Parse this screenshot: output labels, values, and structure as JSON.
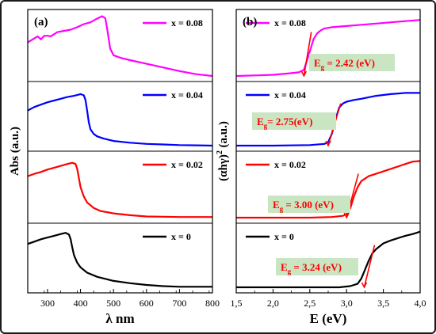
{
  "colors": {
    "x_0.08": "#ff00ff",
    "x_0.04": "#0000ff",
    "x_0.02": "#ff0000",
    "x_0": "#000000",
    "eg_box": "#c9e5c2",
    "eg_text": "#ff0000",
    "tangent": "#ff0000"
  },
  "chart_data": [
    {
      "type": "line",
      "panel_label": "(a)",
      "xlabel": "λ nm",
      "ylabel": "Abs (a.u.)",
      "xlim": [
        240,
        800
      ],
      "xticks": [
        300,
        400,
        500,
        600,
        700,
        800
      ],
      "grid": false,
      "stacked_panels": true,
      "series": [
        {
          "name": "x = 0.08",
          "color_key": "x_0.08",
          "x": [
            240,
            270,
            280,
            290,
            300,
            310,
            330,
            350,
            370,
            390,
            410,
            430,
            450,
            465,
            475,
            480,
            490,
            500,
            520,
            550,
            600,
            650,
            700,
            750,
            800
          ],
          "y": [
            0.55,
            0.65,
            0.6,
            0.66,
            0.66,
            0.65,
            0.72,
            0.74,
            0.76,
            0.8,
            0.85,
            0.88,
            0.94,
            0.98,
            0.95,
            0.8,
            0.45,
            0.34,
            0.3,
            0.26,
            0.2,
            0.14,
            0.08,
            0.03,
            0.0
          ]
        },
        {
          "name": "x = 0.04",
          "color_key": "x_0.04",
          "x": [
            240,
            260,
            280,
            300,
            320,
            340,
            360,
            380,
            400,
            410,
            415,
            420,
            425,
            430,
            440,
            450,
            470,
            500,
            550,
            600,
            650,
            700,
            750,
            800
          ],
          "y": [
            0.6,
            0.66,
            0.7,
            0.74,
            0.77,
            0.8,
            0.83,
            0.85,
            0.88,
            0.86,
            0.78,
            0.6,
            0.4,
            0.28,
            0.2,
            0.16,
            0.12,
            0.08,
            0.05,
            0.03,
            0.02,
            0.01,
            0.005,
            0.0
          ]
        },
        {
          "name": "x = 0.02",
          "color_key": "x_0.02",
          "x": [
            240,
            260,
            280,
            300,
            320,
            340,
            360,
            375,
            385,
            390,
            395,
            400,
            410,
            420,
            440,
            460,
            500,
            550,
            600,
            650,
            700,
            750,
            800
          ],
          "y": [
            0.68,
            0.72,
            0.75,
            0.79,
            0.82,
            0.85,
            0.88,
            0.9,
            0.88,
            0.8,
            0.65,
            0.5,
            0.35,
            0.25,
            0.16,
            0.11,
            0.07,
            0.04,
            0.02,
            0.015,
            0.01,
            0.01,
            0.01
          ]
        },
        {
          "name": "x = 0",
          "color_key": "x_0",
          "x": [
            240,
            260,
            280,
            300,
            320,
            340,
            355,
            365,
            370,
            375,
            380,
            390,
            400,
            420,
            450,
            500,
            550,
            600,
            650,
            700,
            750,
            800
          ],
          "y": [
            0.74,
            0.78,
            0.82,
            0.85,
            0.88,
            0.91,
            0.93,
            0.9,
            0.82,
            0.68,
            0.55,
            0.42,
            0.34,
            0.25,
            0.18,
            0.11,
            0.07,
            0.04,
            0.02,
            0.01,
            0.01,
            0.01
          ]
        }
      ]
    },
    {
      "type": "line",
      "panel_label": "(b)",
      "xlabel": "E (eV)",
      "ylabel": "(αhγ)²",
      "ylabel_unit": "(a.u.)",
      "xlim": [
        1.5,
        4.0
      ],
      "xticks": [
        1.5,
        2.0,
        2.5,
        3.0,
        3.5,
        4.0
      ],
      "xtick_labels": [
        "1,5",
        "2,0",
        "2,5",
        "3,0",
        "3,5",
        "4,0"
      ],
      "grid": false,
      "stacked_panels": true,
      "series": [
        {
          "name": "x = 0.08",
          "color_key": "x_0.08",
          "x": [
            1.5,
            1.8,
            2.0,
            2.2,
            2.35,
            2.42,
            2.5,
            2.55,
            2.6,
            2.65,
            2.7,
            2.8,
            3.0,
            3.2,
            3.4,
            3.6,
            3.8,
            4.0
          ],
          "y": [
            0.0,
            0.01,
            0.02,
            0.04,
            0.06,
            0.1,
            0.4,
            0.6,
            0.7,
            0.75,
            0.78,
            0.8,
            0.82,
            0.84,
            0.86,
            0.88,
            0.9,
            0.92
          ],
          "Eg_label": "2.42 (eV)",
          "Eg": 2.42
        },
        {
          "name": "x = 0.04",
          "color_key": "x_0.04",
          "x": [
            1.5,
            2.0,
            2.5,
            2.7,
            2.75,
            2.8,
            2.85,
            2.9,
            2.95,
            3.0,
            3.1,
            3.2,
            3.4,
            3.6,
            3.8,
            4.0
          ],
          "y": [
            0.0,
            0.0,
            0.01,
            0.03,
            0.06,
            0.2,
            0.45,
            0.65,
            0.72,
            0.75,
            0.78,
            0.8,
            0.85,
            0.88,
            0.9,
            0.9
          ],
          "Eg_label": "2.75(eV)",
          "Eg": 2.75
        },
        {
          "name": "x = 0.02",
          "color_key": "x_0.02",
          "x": [
            1.5,
            2.0,
            2.5,
            2.8,
            2.95,
            3.0,
            3.05,
            3.1,
            3.15,
            3.2,
            3.3,
            3.4,
            3.6,
            3.8,
            3.9,
            4.0
          ],
          "y": [
            0.0,
            0.0,
            0.0,
            0.01,
            0.03,
            0.06,
            0.15,
            0.35,
            0.5,
            0.6,
            0.68,
            0.72,
            0.8,
            0.88,
            0.92,
            0.93
          ],
          "Eg_label": "3.00 (eV)",
          "Eg": 3.0
        },
        {
          "name": "x = 0",
          "color_key": "x_0",
          "x": [
            1.5,
            2.0,
            2.5,
            2.9,
            3.05,
            3.15,
            3.2,
            3.25,
            3.3,
            3.35,
            3.4,
            3.5,
            3.6,
            3.7,
            3.8,
            3.9,
            4.0
          ],
          "y": [
            0.0,
            0.0,
            0.0,
            0.0,
            0.02,
            0.06,
            0.15,
            0.3,
            0.45,
            0.58,
            0.65,
            0.75,
            0.8,
            0.84,
            0.88,
            0.91,
            0.95
          ],
          "Eg_label": "3.24 (eV)",
          "Eg": 3.24
        }
      ]
    }
  ]
}
